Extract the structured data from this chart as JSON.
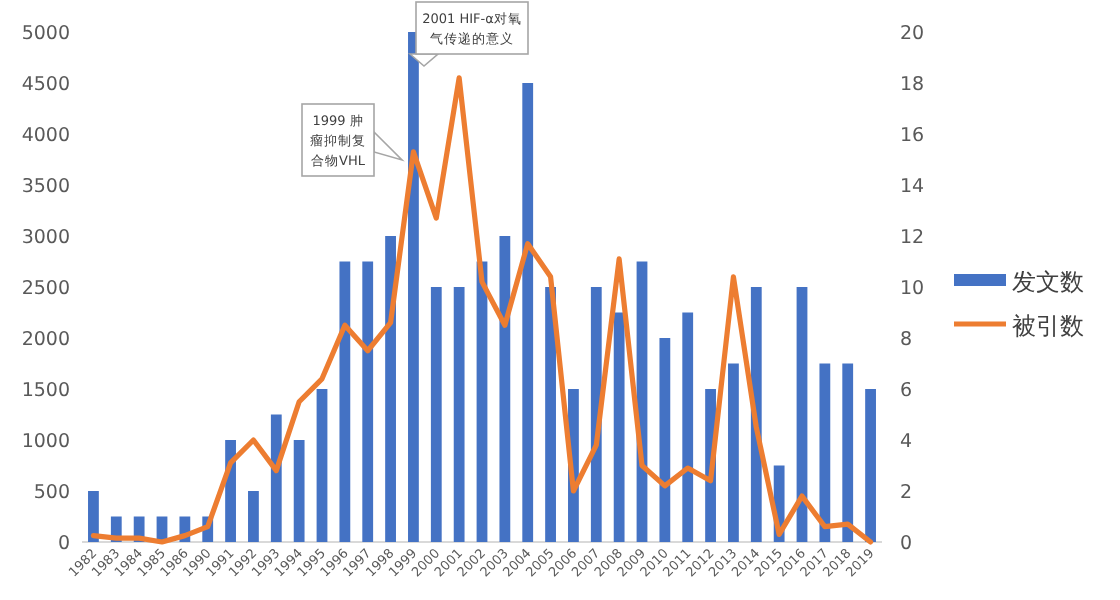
{
  "chart_data": {
    "type": "bar",
    "categories": [
      "1982",
      "1983",
      "1984",
      "1985",
      "1986",
      "1990",
      "1991",
      "1992",
      "1993",
      "1994",
      "1995",
      "1996",
      "1997",
      "1998",
      "1999",
      "2000",
      "2001",
      "2002",
      "2003",
      "2004",
      "2005",
      "2006",
      "2007",
      "2008",
      "2009",
      "2010",
      "2011",
      "2012",
      "2013",
      "2014",
      "2015",
      "2016",
      "2017",
      "2018",
      "2019"
    ],
    "series": [
      {
        "name": "发文数",
        "color": "#4472c4",
        "values": [
          500,
          250,
          250,
          250,
          250,
          250,
          1000,
          500,
          1250,
          1000,
          1500,
          2750,
          2750,
          3000,
          5000,
          2500,
          2500,
          2750,
          3000,
          4500,
          2500,
          1500,
          2500,
          2250,
          2750,
          2000,
          2250,
          1500,
          1750,
          2500,
          750,
          2500,
          1750,
          1750,
          1500
        ]
      },
      {
        "name": "被引数",
        "type": "line",
        "axis": "y2",
        "color": "#ed7d31",
        "values": [
          0.25,
          0.15,
          0.15,
          0,
          0.25,
          0.6,
          3.1,
          4,
          2.8,
          5.5,
          6.4,
          8.5,
          7.5,
          8.6,
          15.3,
          12.7,
          18.2,
          10.2,
          8.5,
          11.7,
          10.4,
          2,
          3.8,
          11.1,
          3,
          2.2,
          2.9,
          2.4,
          10.4,
          4.5,
          0.3,
          1.8,
          0.6,
          0.7,
          0
        ]
      }
    ],
    "ylim": [
      0,
      5000
    ],
    "yticks": [
      0,
      500,
      1000,
      1500,
      2000,
      2500,
      3000,
      3500,
      4000,
      4500,
      5000
    ],
    "y2lim": [
      0,
      20
    ],
    "y2ticks": [
      0,
      2,
      4,
      6,
      8,
      10,
      12,
      14,
      16,
      18,
      20
    ],
    "legend": "right",
    "grid": false,
    "annotations": [
      "1999 肿瘤抑制复合物VHL",
      "2001 HIF-α对氧气传递的意义"
    ]
  }
}
